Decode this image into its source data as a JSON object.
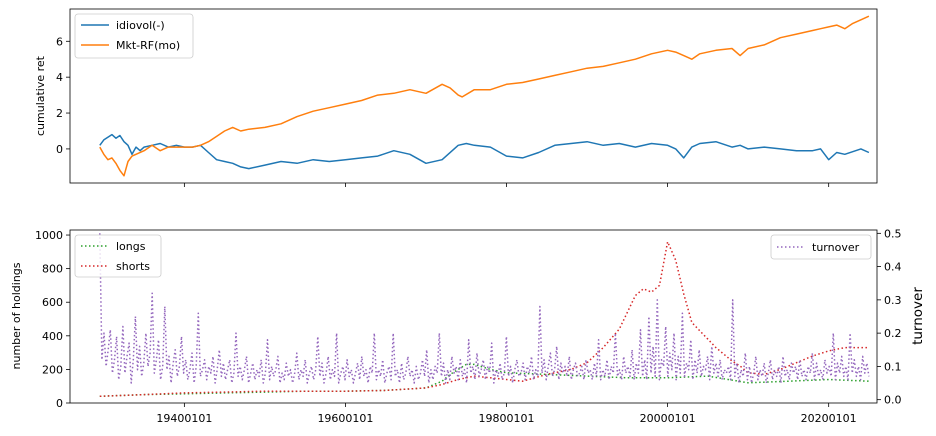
{
  "chart_data": [
    {
      "type": "line",
      "ylabel": "cumulative ret",
      "xlabel": "",
      "x_range": [
        1925.8,
        2026.0
      ],
      "ylim": [
        -1.9,
        7.8
      ],
      "yticks": [
        0,
        2,
        4,
        6
      ],
      "grid": false,
      "legend": "top-left",
      "series": [
        {
          "name": "idiovol(-)",
          "color": "#1f77b4",
          "x": [
            1929.5,
            1930,
            1931,
            1931.5,
            1932,
            1932.5,
            1933,
            1933.5,
            1934,
            1934.5,
            1935,
            1936,
            1937,
            1938,
            1939,
            1940,
            1941,
            1942,
            1943,
            1944,
            1945,
            1946,
            1947,
            1948,
            1950,
            1952,
            1954,
            1956,
            1958,
            1960,
            1962,
            1964,
            1966,
            1968,
            1970,
            1972,
            1974,
            1975,
            1976,
            1978,
            1980,
            1982,
            1984,
            1986,
            1988,
            1990,
            1992,
            1994,
            1996,
            1998,
            2000,
            2001,
            2002,
            2003,
            2004,
            2006,
            2008,
            2009,
            2010,
            2012,
            2014,
            2016,
            2018,
            2019,
            2020,
            2021,
            2022,
            2024,
            2025
          ],
          "y": [
            0.2,
            0.5,
            0.8,
            0.6,
            0.75,
            0.4,
            0.2,
            -0.3,
            0.1,
            -0.1,
            0.1,
            0.2,
            0.3,
            0.1,
            0.2,
            0.1,
            0.1,
            0.2,
            -0.2,
            -0.6,
            -0.7,
            -0.8,
            -1.0,
            -1.1,
            -0.9,
            -0.7,
            -0.8,
            -0.6,
            -0.7,
            -0.6,
            -0.5,
            -0.4,
            -0.1,
            -0.3,
            -0.8,
            -0.6,
            0.2,
            0.3,
            0.2,
            0.1,
            -0.4,
            -0.5,
            -0.2,
            0.2,
            0.3,
            0.4,
            0.2,
            0.3,
            0.1,
            0.3,
            0.2,
            0.0,
            -0.5,
            0.1,
            0.3,
            0.4,
            0.1,
            0.2,
            0.0,
            0.1,
            0.0,
            -0.1,
            -0.1,
            0.0,
            -0.6,
            -0.2,
            -0.3,
            0.0,
            -0.2
          ]
        },
        {
          "name": "Mkt-RF(mo)",
          "color": "#ff7f0e",
          "x": [
            1929.5,
            1930,
            1930.5,
            1931,
            1931.5,
            1932,
            1932.5,
            1933,
            1933.5,
            1934,
            1935,
            1936,
            1937,
            1938,
            1939,
            1940,
            1941,
            1942,
            1943,
            1944,
            1945,
            1946,
            1947,
            1948,
            1950,
            1952,
            1954,
            1956,
            1958,
            1960,
            1962,
            1964,
            1966,
            1968,
            1970,
            1972,
            1973,
            1974,
            1974.5,
            1976,
            1978,
            1980,
            1982,
            1984,
            1986,
            1988,
            1990,
            1992,
            1994,
            1996,
            1998,
            2000,
            2001,
            2002,
            2003,
            2004,
            2006,
            2008,
            2009,
            2010,
            2012,
            2014,
            2016,
            2018,
            2019,
            2020,
            2021,
            2022,
            2023,
            2024,
            2025
          ],
          "y": [
            0.1,
            -0.3,
            -0.6,
            -0.5,
            -0.8,
            -1.2,
            -1.5,
            -0.7,
            -0.4,
            -0.3,
            -0.1,
            0.2,
            -0.1,
            0.1,
            0.1,
            0.1,
            0.1,
            0.2,
            0.4,
            0.7,
            1.0,
            1.2,
            1.0,
            1.1,
            1.2,
            1.4,
            1.8,
            2.1,
            2.3,
            2.5,
            2.7,
            3.0,
            3.1,
            3.3,
            3.1,
            3.6,
            3.4,
            3.0,
            2.9,
            3.3,
            3.3,
            3.6,
            3.7,
            3.9,
            4.1,
            4.3,
            4.5,
            4.6,
            4.8,
            5.0,
            5.3,
            5.5,
            5.4,
            5.2,
            5.0,
            5.3,
            5.5,
            5.6,
            5.2,
            5.6,
            5.8,
            6.2,
            6.4,
            6.6,
            6.7,
            6.8,
            6.9,
            6.7,
            7.0,
            7.2,
            7.4
          ]
        }
      ]
    },
    {
      "type": "line",
      "ylabel": "number of holdings",
      "y2label": "turnover",
      "xlabel": "",
      "x_range": [
        1925.8,
        2026.0
      ],
      "xticks": [
        1940,
        1960,
        1980,
        2000,
        2020
      ],
      "xtick_labels": [
        "19400101",
        "19600101",
        "19800101",
        "20000101",
        "20200101"
      ],
      "ylim": [
        0,
        1030
      ],
      "yticks": [
        0,
        200,
        400,
        600,
        800,
        1000
      ],
      "y2lim": [
        -0.01,
        0.51
      ],
      "y2ticks": [
        0.0,
        0.1,
        0.2,
        0.3,
        0.4,
        0.5
      ],
      "y2tick_labels": [
        "0.0",
        "0.1",
        "0.2",
        "0.3",
        "0.4",
        "0.5"
      ],
      "grid": false,
      "legend": "top-left",
      "legend2": "top-right",
      "series": [
        {
          "name": "longs",
          "axis": "left",
          "style": "dotted",
          "color": "#2ca02c",
          "x": [
            1929.5,
            1935,
            1940,
            1945,
            1950,
            1955,
            1960,
            1965,
            1970,
            1972,
            1973,
            1974,
            1975,
            1976,
            1978,
            1980,
            1985,
            1990,
            1995,
            2000,
            2005,
            2010,
            2015,
            2020,
            2025
          ],
          "y": [
            40,
            50,
            55,
            60,
            65,
            70,
            70,
            75,
            90,
            130,
            170,
            200,
            230,
            230,
            200,
            180,
            170,
            160,
            150,
            150,
            160,
            120,
            130,
            140,
            130
          ]
        },
        {
          "name": "shorts",
          "axis": "left",
          "style": "dotted",
          "color": "#d62728",
          "x": [
            1929.5,
            1935,
            1940,
            1945,
            1950,
            1955,
            1960,
            1965,
            1970,
            1972,
            1974,
            1976,
            1978,
            1980,
            1982,
            1985,
            1988,
            1990,
            1992,
            1994,
            1996,
            1997,
            1998,
            1999,
            2000,
            2001,
            2002,
            2003,
            2004,
            2005,
            2006,
            2007,
            2008,
            2009,
            2010,
            2012,
            2014,
            2016,
            2018,
            2020,
            2022,
            2025
          ],
          "y": [
            40,
            50,
            60,
            65,
            70,
            70,
            70,
            75,
            90,
            110,
            140,
            160,
            150,
            140,
            130,
            170,
            200,
            240,
            330,
            440,
            640,
            680,
            660,
            700,
            960,
            850,
            650,
            480,
            430,
            380,
            330,
            290,
            250,
            220,
            180,
            170,
            200,
            240,
            280,
            310,
            330,
            330
          ]
        },
        {
          "name": "turnover",
          "axis": "right",
          "style": "dotted",
          "color": "#9467bd",
          "x_start": 1929.5,
          "x_end": 2025.0,
          "y": [
            0.5,
            0.12,
            0.2,
            0.1,
            0.15,
            0.21,
            0.08,
            0.12,
            0.19,
            0.06,
            0.1,
            0.22,
            0.08,
            0.13,
            0.17,
            0.05,
            0.12,
            0.25,
            0.09,
            0.16,
            0.07,
            0.11,
            0.2,
            0.1,
            0.14,
            0.32,
            0.08,
            0.12,
            0.18,
            0.06,
            0.1,
            0.28,
            0.09,
            0.13,
            0.05,
            0.11,
            0.15,
            0.07,
            0.1,
            0.19,
            0.08,
            0.12,
            0.06,
            0.09,
            0.14,
            0.05,
            0.1,
            0.26,
            0.07,
            0.09,
            0.12,
            0.06,
            0.1,
            0.08,
            0.13,
            0.05,
            0.09,
            0.15,
            0.07,
            0.11,
            0.06,
            0.09,
            0.12,
            0.05,
            0.08,
            0.2,
            0.07,
            0.1,
            0.06,
            0.09,
            0.13,
            0.05,
            0.08,
            0.11,
            0.06,
            0.09,
            0.07,
            0.12,
            0.05,
            0.08,
            0.18,
            0.06,
            0.1,
            0.07,
            0.09,
            0.13,
            0.05,
            0.08,
            0.06,
            0.11,
            0.07,
            0.09,
            0.05,
            0.08,
            0.14,
            0.06,
            0.09,
            0.07,
            0.12,
            0.05,
            0.08,
            0.1,
            0.06,
            0.09,
            0.19,
            0.07,
            0.11,
            0.05,
            0.08,
            0.13,
            0.06,
            0.09,
            0.07,
            0.2,
            0.05,
            0.08,
            0.1,
            0.06,
            0.12,
            0.07,
            0.09,
            0.05,
            0.08,
            0.11,
            0.06,
            0.13,
            0.07,
            0.09,
            0.05,
            0.1,
            0.08,
            0.2,
            0.06,
            0.09,
            0.07,
            0.12,
            0.05,
            0.08,
            0.1,
            0.06,
            0.2,
            0.07,
            0.09,
            0.05,
            0.11,
            0.06,
            0.08,
            0.13,
            0.07,
            0.09,
            0.05,
            0.1,
            0.06,
            0.08,
            0.12,
            0.07,
            0.15,
            0.05,
            0.09,
            0.06,
            0.1,
            0.08,
            0.2,
            0.07,
            0.11,
            0.05,
            0.09,
            0.06,
            0.13,
            0.08,
            0.1,
            0.06,
            0.12,
            0.07,
            0.09,
            0.05,
            0.18,
            0.08,
            0.1,
            0.06,
            0.14,
            0.07,
            0.09,
            0.12,
            0.06,
            0.1,
            0.08,
            0.17,
            0.05,
            0.09,
            0.07,
            0.11,
            0.06,
            0.08,
            0.19,
            0.07,
            0.1,
            0.05,
            0.09,
            0.12,
            0.07,
            0.08,
            0.11,
            0.06,
            0.1,
            0.08,
            0.13,
            0.06,
            0.09,
            0.07,
            0.28,
            0.08,
            0.12,
            0.06,
            0.1,
            0.14,
            0.07,
            0.09,
            0.16,
            0.06,
            0.11,
            0.08,
            0.1,
            0.07,
            0.13,
            0.06,
            0.09,
            0.11,
            0.07,
            0.08,
            0.1,
            0.06,
            0.12,
            0.08,
            0.09,
            0.06,
            0.11,
            0.07,
            0.18,
            0.06,
            0.09,
            0.07,
            0.12,
            0.06,
            0.1,
            0.08,
            0.2,
            0.07,
            0.09,
            0.06,
            0.13,
            0.08,
            0.1,
            0.07,
            0.15,
            0.06,
            0.11,
            0.08,
            0.21,
            0.07,
            0.12,
            0.06,
            0.25,
            0.08,
            0.16,
            0.07,
            0.3,
            0.06,
            0.12,
            0.1,
            0.22,
            0.07,
            0.14,
            0.09,
            0.2,
            0.06,
            0.13,
            0.08,
            0.26,
            0.07,
            0.11,
            0.09,
            0.18,
            0.06,
            0.12,
            0.08,
            0.15,
            0.07,
            0.1,
            0.09,
            0.13,
            0.06,
            0.16,
            0.08,
            0.11,
            0.07,
            0.12,
            0.06,
            0.09,
            0.08,
            0.1,
            0.06,
            0.3,
            0.07,
            0.11,
            0.05,
            0.09,
            0.07,
            0.14,
            0.06,
            0.1,
            0.05,
            0.08,
            0.13,
            0.06,
            0.09,
            0.07,
            0.11,
            0.05,
            0.08,
            0.12,
            0.06,
            0.09,
            0.07,
            0.1,
            0.05,
            0.13,
            0.07,
            0.09,
            0.06,
            0.11,
            0.08,
            0.1,
            0.06,
            0.12,
            0.07,
            0.09,
            0.06,
            0.1,
            0.08,
            0.14,
            0.06,
            0.11,
            0.07,
            0.09,
            0.06,
            0.12,
            0.08,
            0.1,
            0.07,
            0.2,
            0.06,
            0.11,
            0.08,
            0.13,
            0.07,
            0.1,
            0.06,
            0.2,
            0.08,
            0.12,
            0.07,
            0.1,
            0.06,
            0.13,
            0.08,
            0.11,
            0.07
          ]
        }
      ]
    }
  ]
}
